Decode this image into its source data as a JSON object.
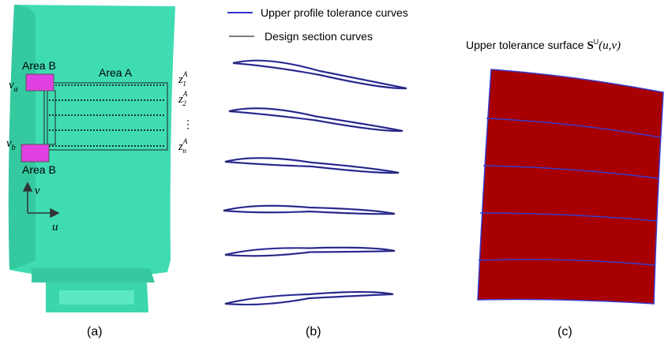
{
  "panel_a": {
    "area_a": "Area A",
    "area_b_top": "Area B",
    "area_b_bottom": "Area B",
    "v_a": {
      "base": "v",
      "sub": "a"
    },
    "v_b": {
      "base": "v",
      "sub": "b"
    },
    "z_labels": [
      {
        "base": "z",
        "sub": "1",
        "sup": "A"
      },
      {
        "base": "z",
        "sub": "2",
        "sup": "A"
      },
      {
        "base": "z",
        "sub": "n",
        "sup": "A"
      }
    ],
    "dots": "⋮",
    "axis_v": "v",
    "axis_u": "u",
    "caption": "(a)"
  },
  "panel_b": {
    "legend": [
      "Upper profile tolerance curves",
      "Design section curves"
    ],
    "caption": "(b)"
  },
  "panel_c": {
    "title": {
      "text": "Upper tolerance surface",
      "symbol": "S",
      "sup": "U",
      "args": "(u,v)"
    },
    "caption": "(c)"
  }
}
